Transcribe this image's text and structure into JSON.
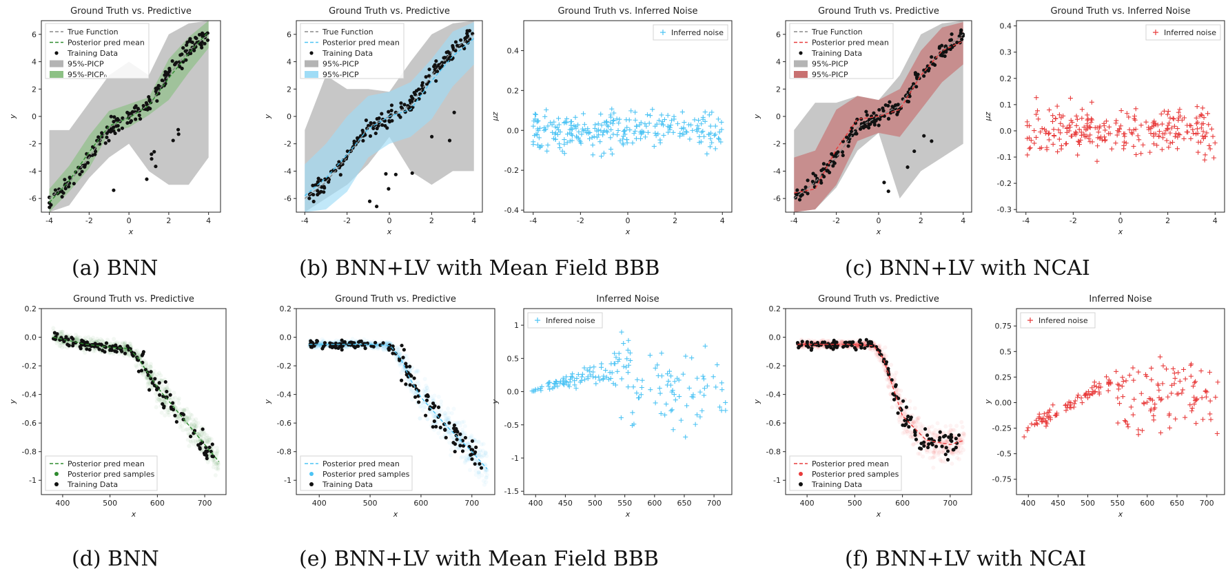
{
  "colors": {
    "green": "#2e8b2e",
    "green_band": "#8cc084",
    "blue": "#4cc3f4",
    "blue_band": "#9fdcf6",
    "red": "#e83b3b",
    "red_band": "#c87070",
    "gray_band": "#b4b4b4",
    "black": "#111111"
  },
  "captions": [
    "(a) BNN",
    "(b) BNN+LV with Mean Field BBB",
    "(c) BNN+LV with NCAI",
    "(d) BNN",
    "(e) BNN+LV with Mean Field BBB",
    "(f) BNN+LV with NCAI"
  ],
  "chart_data": [
    {
      "id": "a",
      "type": "line",
      "title": "Ground Truth vs. Predictive",
      "xlabel": "x",
      "ylabel": "y",
      "xlim": [
        -4.4,
        4.6
      ],
      "ylim": [
        -7,
        7
      ],
      "xticks": [
        -4,
        -2,
        0,
        2,
        4
      ],
      "yticks": [
        -6,
        -4,
        -2,
        0,
        2,
        4,
        6
      ],
      "legend": [
        "True Function",
        "Posterior pred mean",
        "Training Data",
        "95%-PICP",
        "95%-PICPₙ"
      ],
      "x": [
        -4,
        -3,
        -2,
        -1,
        0,
        1,
        2,
        3,
        4
      ],
      "true_function": [
        -6,
        -4.8,
        -3,
        -0.8,
        0,
        0.8,
        3,
        4.8,
        6
      ],
      "posterior_mean": [
        -6.3,
        -4.7,
        -2.6,
        -0.7,
        -0.1,
        0.8,
        2.8,
        4.6,
        6.2
      ],
      "band_inner": {
        "lower": [
          -7,
          -5.5,
          -3.8,
          -1.2,
          -0.8,
          0.1,
          1.2,
          3.2,
          5
        ],
        "upper": [
          -5.3,
          -3.6,
          -1.4,
          0.4,
          0.9,
          1.4,
          4.2,
          5.8,
          7
        ]
      },
      "band_outer": {
        "lower": [
          -7,
          -6.5,
          -4.5,
          -3,
          -2,
          -4,
          -5,
          -5,
          -3
        ],
        "upper": [
          -1,
          -1,
          1,
          3,
          4,
          3,
          6,
          6.8,
          7
        ]
      },
      "color": "green"
    },
    {
      "id": "b1",
      "type": "line",
      "title": "Ground Truth vs. Predictive",
      "xlabel": "x",
      "ylabel": "y",
      "xlim": [
        -4.4,
        4.4
      ],
      "ylim": [
        -7,
        7
      ],
      "xticks": [
        -4,
        -2,
        0,
        2,
        4
      ],
      "yticks": [
        -6,
        -4,
        -2,
        0,
        2,
        4,
        6
      ],
      "legend": [
        "True Function",
        "Posterior pred mean",
        "Training Data",
        "95%-PICP",
        "95%-PICP"
      ],
      "x": [
        -4,
        -3,
        -2,
        -1,
        0,
        1,
        2,
        3,
        4
      ],
      "true_function": [
        -6,
        -4.8,
        -3,
        -0.8,
        0,
        0.8,
        3,
        4.8,
        6
      ],
      "posterior_mean": [
        -5.8,
        -4.5,
        -2.8,
        -0.9,
        0,
        0.5,
        2.6,
        4.4,
        5.7
      ],
      "band_inner": {
        "lower": [
          -7,
          -6.8,
          -5.5,
          -3,
          -2,
          -1.5,
          -0.2,
          2.2,
          3.8
        ],
        "upper": [
          -3.5,
          -2,
          0,
          1.5,
          1.8,
          2.5,
          4.2,
          6.2,
          6.9
        ]
      },
      "band_outer": {
        "lower": [
          -7,
          -6,
          -5,
          -3.5,
          -1.5,
          -4,
          -5,
          -4,
          -4
        ],
        "upper": [
          -1,
          3,
          2,
          2,
          1.8,
          4,
          6,
          6.8,
          7
        ]
      },
      "color": "blue"
    },
    {
      "id": "b2",
      "type": "scatter",
      "title": "Ground Truth vs. Inferred Noise",
      "xlabel": "x",
      "ylabel": "μ_z",
      "xlim": [
        -4.4,
        4.4
      ],
      "ylim": [
        -0.41,
        0.55
      ],
      "xticks": [
        -4,
        -2,
        0,
        2,
        4
      ],
      "yticks": [
        -0.4,
        -0.2,
        0.0,
        0.2,
        0.4
      ],
      "legend": [
        "Inferred noise"
      ],
      "color": "blue",
      "noise_style": "b2"
    },
    {
      "id": "c1",
      "type": "line",
      "title": "Ground Truth vs. Predictive",
      "xlabel": "x",
      "ylabel": "y",
      "xlim": [
        -4.4,
        4.4
      ],
      "ylim": [
        -7,
        7
      ],
      "xticks": [
        -4,
        -2,
        0,
        2,
        4
      ],
      "yticks": [
        -6,
        -4,
        -2,
        0,
        2,
        4,
        6
      ],
      "legend": [
        "True Function",
        "Posterior pred mean",
        "Training Data",
        "95%-PICP",
        "95%-PICP"
      ],
      "x": [
        -4,
        -3,
        -2,
        -1,
        0,
        1,
        2,
        3,
        4
      ],
      "true_function": [
        -6,
        -4.8,
        -3,
        -0.8,
        0,
        0.8,
        3,
        4.8,
        6
      ],
      "posterior_mean": [
        -5.6,
        -5.3,
        -2.4,
        -0.2,
        0.0,
        0.5,
        3.0,
        4.8,
        5.5
      ],
      "band_inner": {
        "lower": [
          -7,
          -6.8,
          -5,
          -1.8,
          -1.2,
          -1.5,
          0.5,
          2.5,
          3.8
        ],
        "upper": [
          -3,
          -2.5,
          0.5,
          1.5,
          1.2,
          2,
          4.8,
          6.5,
          6.9
        ]
      },
      "band_outer": {
        "lower": [
          -7,
          -6.8,
          -5.2,
          -2.5,
          -1.2,
          -6,
          -4,
          -3,
          -2
        ],
        "upper": [
          -1,
          1,
          1,
          1.5,
          1.2,
          3,
          6,
          6.8,
          7
        ]
      },
      "color": "red"
    },
    {
      "id": "c2",
      "type": "scatter",
      "title": "Ground Truth vs. Inferred Noise",
      "xlabel": "x",
      "ylabel": "μ_z",
      "xlim": [
        -4.4,
        4.4
      ],
      "ylim": [
        -0.31,
        0.42
      ],
      "xticks": [
        -4,
        -2,
        0,
        2,
        4
      ],
      "yticks": [
        -0.3,
        -0.2,
        -0.1,
        0.0,
        0.1,
        0.2,
        0.3,
        0.4
      ],
      "legend": [
        "Inferred noise"
      ],
      "color": "red",
      "noise_style": "c2"
    },
    {
      "id": "d",
      "type": "line",
      "title": "Ground Truth vs. Predictive",
      "xlabel": "x",
      "ylabel": "y",
      "xlim": [
        355,
        745
      ],
      "ylim": [
        -1.1,
        0.2
      ],
      "xticks": [
        400,
        500,
        600,
        700
      ],
      "yticks": [
        0.2,
        0.0,
        -0.2,
        -0.4,
        -0.6,
        -0.8,
        -1.0
      ],
      "legend": [
        "Posterior pred mean",
        "Posterior pred samples",
        "Training Data"
      ],
      "x": [
        380,
        450,
        500,
        540,
        560,
        580,
        600,
        650,
        700,
        730
      ],
      "posterior_mean": [
        0.0,
        -0.05,
        -0.07,
        -0.08,
        -0.15,
        -0.25,
        -0.35,
        -0.55,
        -0.75,
        -0.87
      ],
      "sample_spread": [
        0.07,
        0.07,
        0.07,
        0.07,
        0.1,
        0.15,
        0.17,
        0.17,
        0.17,
        0.17
      ],
      "color": "green"
    },
    {
      "id": "e1",
      "type": "line",
      "title": "Ground Truth vs. Predictive",
      "xlabel": "x",
      "ylabel": "y",
      "xlim": [
        355,
        745
      ],
      "ylim": [
        -1.1,
        0.2
      ],
      "xticks": [
        400,
        500,
        600,
        700
      ],
      "yticks": [
        0.2,
        0.0,
        -0.2,
        -0.4,
        -0.6,
        -0.8,
        -1.0
      ],
      "legend": [
        "Posterior pred mean",
        "Posterior pred samples",
        "Training Data"
      ],
      "x": [
        380,
        450,
        500,
        540,
        560,
        580,
        600,
        650,
        700,
        730
      ],
      "posterior_mean": [
        -0.05,
        -0.05,
        -0.05,
        -0.06,
        -0.15,
        -0.3,
        -0.42,
        -0.62,
        -0.8,
        -0.92
      ],
      "sample_spread": [
        0.04,
        0.04,
        0.04,
        0.05,
        0.1,
        0.2,
        0.22,
        0.22,
        0.2,
        0.2
      ],
      "color": "blue"
    },
    {
      "id": "e2",
      "type": "scatter",
      "title": "Inferred Noise",
      "xlabel": "x",
      "ylabel": "y",
      "xlim": [
        380,
        730
      ],
      "ylim": [
        -1.55,
        1.25
      ],
      "xticks": [
        400,
        450,
        500,
        550,
        600,
        650,
        700
      ],
      "yticks": [
        -1.5,
        -1.0,
        -0.5,
        0.0,
        0.5,
        1.0
      ],
      "legend": [
        "Infered noise"
      ],
      "color": "blue",
      "noise_style": "e2"
    },
    {
      "id": "f1",
      "type": "line",
      "title": "Ground Truth vs. Predictive",
      "xlabel": "x",
      "ylabel": "y",
      "xlim": [
        355,
        745
      ],
      "ylim": [
        -1.1,
        0.2
      ],
      "xticks": [
        400,
        500,
        600,
        700
      ],
      "yticks": [
        0.2,
        0.0,
        -0.2,
        -0.4,
        -0.6,
        -0.8,
        -1.0
      ],
      "legend": [
        "Posterior pred mean",
        "Posterior pred samples",
        "Training Data"
      ],
      "x": [
        380,
        450,
        500,
        540,
        560,
        580,
        600,
        650,
        700,
        730
      ],
      "posterior_mean": [
        -0.05,
        -0.05,
        -0.05,
        -0.06,
        -0.15,
        -0.35,
        -0.55,
        -0.72,
        -0.75,
        -0.72
      ],
      "sample_spread": [
        0.04,
        0.04,
        0.04,
        0.05,
        0.12,
        0.22,
        0.22,
        0.2,
        0.2,
        0.2
      ],
      "color": "red"
    },
    {
      "id": "f2",
      "type": "scatter",
      "title": "Inferred Noise",
      "xlabel": "x",
      "ylabel": "y",
      "xlim": [
        380,
        730
      ],
      "ylim": [
        -0.9,
        0.92
      ],
      "xticks": [
        400,
        450,
        500,
        550,
        600,
        650,
        700
      ],
      "yticks": [
        -0.75,
        -0.5,
        -0.25,
        0.0,
        0.25,
        0.5,
        0.75
      ],
      "legend": [
        "Infered noise"
      ],
      "color": "red",
      "noise_style": "f2"
    }
  ]
}
